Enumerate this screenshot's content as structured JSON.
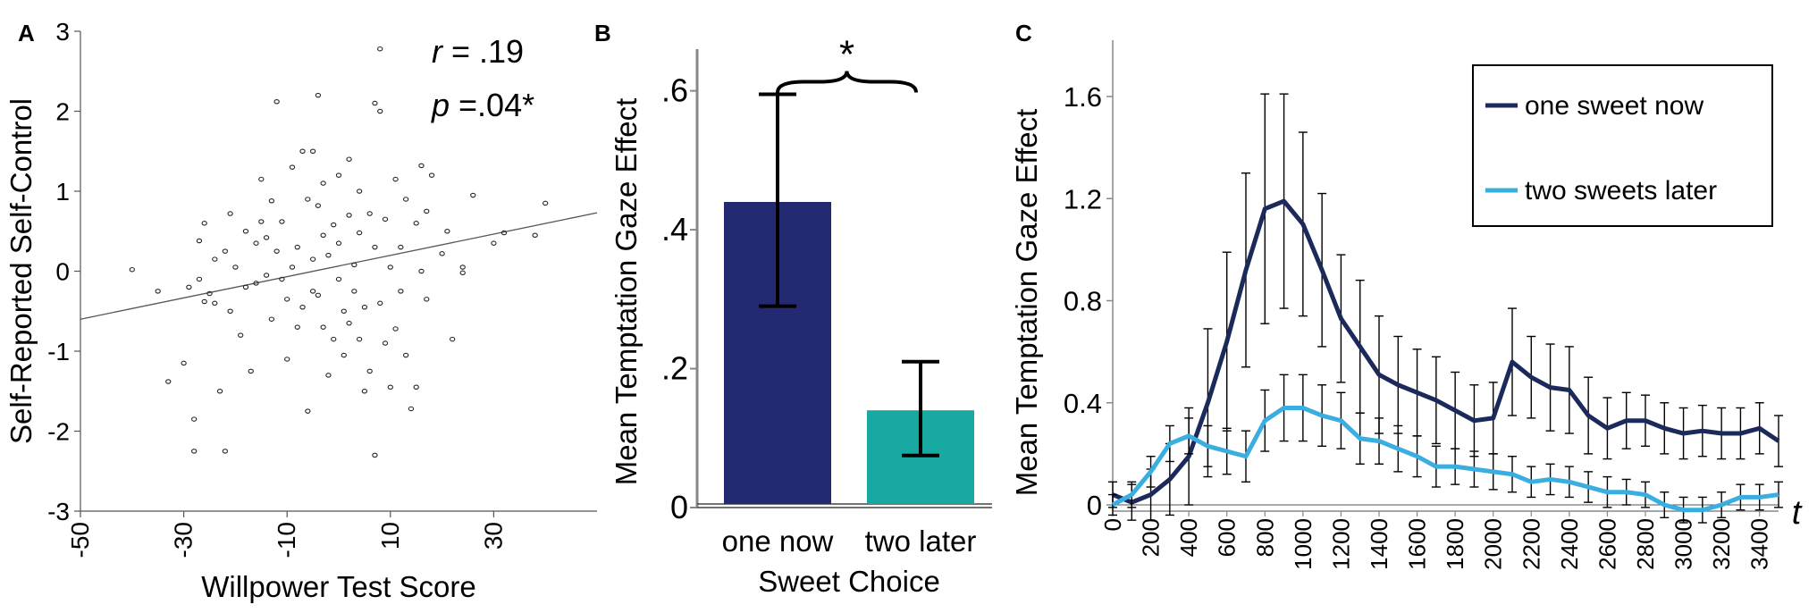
{
  "chart_data": [
    {
      "panel": "A",
      "type": "scatter",
      "xlabel": "Willpower Test Score",
      "ylabel": "Self-Reported Self-Control",
      "xlim": [
        -50,
        50
      ],
      "ylim": [
        -3,
        3
      ],
      "xticks": [
        "-50",
        "-30",
        "-10",
        "10",
        "30"
      ],
      "yticks": [
        "3",
        "2",
        "1",
        "0",
        "-1",
        "-2",
        "-3"
      ],
      "annotation": {
        "r_symbol": "r",
        "r_text": " = .19",
        "p_symbol": "p",
        "p_text": " =.04*"
      },
      "fit_line": {
        "x": [
          -50,
          50
        ],
        "y": [
          -0.6,
          0.73
        ]
      },
      "points": [
        [
          -40,
          0.02
        ],
        [
          -35,
          -0.25
        ],
        [
          -33,
          -1.38
        ],
        [
          -30,
          -1.15
        ],
        [
          -29,
          -0.2
        ],
        [
          -28,
          -2.25
        ],
        [
          -28,
          -1.85
        ],
        [
          -27,
          0.38
        ],
        [
          -27,
          -0.1
        ],
        [
          -26,
          0.6
        ],
        [
          -26,
          -0.38
        ],
        [
          -25,
          -0.28
        ],
        [
          -24,
          0.15
        ],
        [
          -24,
          -0.4
        ],
        [
          -23,
          -1.5
        ],
        [
          -22,
          -2.25
        ],
        [
          -22,
          0.25
        ],
        [
          -21,
          0.72
        ],
        [
          -21,
          -0.5
        ],
        [
          -20,
          0.05
        ],
        [
          -19,
          -0.8
        ],
        [
          -18,
          -0.2
        ],
        [
          -18,
          0.5
        ],
        [
          -17,
          -1.25
        ],
        [
          -16,
          0.35
        ],
        [
          -16,
          -0.15
        ],
        [
          -15,
          0.62
        ],
        [
          -15,
          1.15
        ],
        [
          -14,
          0.42
        ],
        [
          -14,
          -0.05
        ],
        [
          -13,
          -0.6
        ],
        [
          -13,
          0.88
        ],
        [
          -12,
          2.12
        ],
        [
          -12,
          0.25
        ],
        [
          -11,
          -0.1
        ],
        [
          -11,
          0.62
        ],
        [
          -10,
          -0.35
        ],
        [
          -10,
          -1.1
        ],
        [
          -9,
          1.3
        ],
        [
          -9,
          0.05
        ],
        [
          -8,
          -0.7
        ],
        [
          -8,
          0.3
        ],
        [
          -7,
          1.5
        ],
        [
          -7,
          -0.45
        ],
        [
          -6,
          0.9
        ],
        [
          -6,
          -1.75
        ],
        [
          -5,
          0.15
        ],
        [
          -5,
          -0.25
        ],
        [
          -5,
          1.5
        ],
        [
          -4,
          2.2
        ],
        [
          -4,
          0.82
        ],
        [
          -4,
          -0.3
        ],
        [
          -3,
          -0.7
        ],
        [
          -3,
          0.45
        ],
        [
          -3,
          1.1
        ],
        [
          -2,
          -1.3
        ],
        [
          -2,
          0.2
        ],
        [
          -1,
          -0.85
        ],
        [
          -1,
          0.58
        ],
        [
          0,
          -0.1
        ],
        [
          0,
          1.2
        ],
        [
          0,
          0.35
        ],
        [
          1,
          -0.5
        ],
        [
          1,
          -1.05
        ],
        [
          2,
          0.7
        ],
        [
          2,
          -0.65
        ],
        [
          2,
          1.4
        ],
        [
          3,
          -0.25
        ],
        [
          3,
          0.08
        ],
        [
          4,
          -0.85
        ],
        [
          4,
          0.48
        ],
        [
          4,
          1.0
        ],
        [
          5,
          -0.45
        ],
        [
          5,
          -1.5
        ],
        [
          6,
          0.72
        ],
        [
          6,
          -1.25
        ],
        [
          7,
          2.1
        ],
        [
          7,
          0.3
        ],
        [
          7,
          -2.3
        ],
        [
          8,
          -0.4
        ],
        [
          8,
          2.0
        ],
        [
          8,
          2.78
        ],
        [
          9,
          -0.9
        ],
        [
          9,
          0.65
        ],
        [
          10,
          -1.45
        ],
        [
          10,
          0.05
        ],
        [
          11,
          1.15
        ],
        [
          11,
          -0.72
        ],
        [
          12,
          -0.25
        ],
        [
          12,
          0.3
        ],
        [
          13,
          -1.05
        ],
        [
          13,
          0.9
        ],
        [
          14,
          -1.72
        ],
        [
          15,
          0.6
        ],
        [
          15,
          -1.45
        ],
        [
          16,
          0.0
        ],
        [
          16,
          1.32
        ],
        [
          17,
          -0.35
        ],
        [
          17,
          0.75
        ],
        [
          18,
          1.2
        ],
        [
          20,
          0.22
        ],
        [
          21,
          0.5
        ],
        [
          22,
          -0.85
        ],
        [
          24,
          0.05
        ],
        [
          24,
          -0.02
        ],
        [
          26,
          0.95
        ],
        [
          30,
          0.35
        ],
        [
          32,
          0.48
        ],
        [
          38,
          0.45
        ],
        [
          40,
          0.85
        ]
      ],
      "grid": false
    },
    {
      "panel": "B",
      "type": "bar",
      "xlabel": "Sweet Choice",
      "ylabel": "Mean Temptation Gaze Effect",
      "categories": [
        "one now",
        "two later"
      ],
      "values": [
        0.44,
        0.14
      ],
      "error_low": [
        0.29,
        0.075
      ],
      "error_high": [
        0.595,
        0.21
      ],
      "colors": [
        "#242a72",
        "#18a9a2"
      ],
      "ylim": [
        0,
        0.66
      ],
      "yticks": [
        {
          "value": 0.6,
          "label": ".6"
        },
        {
          "value": 0.4,
          "label": ".4"
        },
        {
          "value": 0.2,
          "label": ".2"
        },
        {
          "value": 0.0,
          "label": "0"
        }
      ],
      "significance": "*",
      "grid": false
    },
    {
      "panel": "C",
      "type": "line",
      "xlabel": "t",
      "ylabel": "Mean Temptation Gaze Effect",
      "xlim": [
        0,
        3500
      ],
      "ylim": [
        -0.1,
        1.8
      ],
      "xticks": [
        "0",
        "200",
        "400",
        "600",
        "800",
        "1000",
        "1200",
        "1400",
        "1600",
        "1800",
        "2000",
        "2200",
        "2400",
        "2600",
        "2800",
        "3000",
        "3200",
        "3400"
      ],
      "yticks": [
        {
          "value": 1.6,
          "label": "1.6"
        },
        {
          "value": 1.2,
          "label": "1.2"
        },
        {
          "value": 0.8,
          "label": "0.8"
        },
        {
          "value": 0.4,
          "label": "0.4"
        },
        {
          "value": 0.0,
          "label": "0"
        }
      ],
      "legend_position": "top-right",
      "x": [
        0,
        100,
        200,
        300,
        400,
        500,
        600,
        700,
        800,
        900,
        1000,
        1100,
        1200,
        1300,
        1400,
        1500,
        1600,
        1700,
        1800,
        1900,
        2000,
        2100,
        2200,
        2300,
        2400,
        2500,
        2600,
        2700,
        2800,
        2900,
        3000,
        3100,
        3200,
        3300,
        3400,
        3500
      ],
      "series": [
        {
          "name": "one sweet now",
          "color": "#1b2a5a",
          "values": [
            0.04,
            0.01,
            0.04,
            0.1,
            0.19,
            0.4,
            0.64,
            0.92,
            1.16,
            1.19,
            1.1,
            0.92,
            0.73,
            0.62,
            0.51,
            0.47,
            0.44,
            0.41,
            0.37,
            0.33,
            0.34,
            0.56,
            0.5,
            0.46,
            0.45,
            0.35,
            0.3,
            0.33,
            0.33,
            0.3,
            0.28,
            0.29,
            0.28,
            0.28,
            0.3,
            0.25
          ],
          "error": [
            0.05,
            0.07,
            0.1,
            0.14,
            0.19,
            0.29,
            0.35,
            0.38,
            0.45,
            0.42,
            0.36,
            0.3,
            0.25,
            0.26,
            0.23,
            0.19,
            0.17,
            0.17,
            0.15,
            0.14,
            0.14,
            0.21,
            0.16,
            0.17,
            0.17,
            0.15,
            0.12,
            0.11,
            0.1,
            0.1,
            0.1,
            0.1,
            0.1,
            0.1,
            0.1,
            0.1
          ]
        },
        {
          "name": "two sweets later",
          "color": "#3aaee0",
          "values": [
            0.0,
            0.04,
            0.13,
            0.24,
            0.27,
            0.23,
            0.21,
            0.19,
            0.33,
            0.38,
            0.38,
            0.35,
            0.33,
            0.26,
            0.25,
            0.22,
            0.19,
            0.15,
            0.15,
            0.14,
            0.13,
            0.12,
            0.09,
            0.1,
            0.09,
            0.07,
            0.05,
            0.05,
            0.04,
            0.0,
            -0.02,
            -0.02,
            0.0,
            0.03,
            0.03,
            0.04
          ],
          "error": [
            0.04,
            0.05,
            0.06,
            0.07,
            0.07,
            0.08,
            0.09,
            0.1,
            0.12,
            0.13,
            0.13,
            0.12,
            0.11,
            0.1,
            0.09,
            0.09,
            0.08,
            0.08,
            0.07,
            0.07,
            0.07,
            0.07,
            0.06,
            0.06,
            0.06,
            0.06,
            0.06,
            0.05,
            0.05,
            0.05,
            0.05,
            0.05,
            0.05,
            0.05,
            0.05,
            0.05
          ]
        }
      ],
      "grid": false
    }
  ]
}
